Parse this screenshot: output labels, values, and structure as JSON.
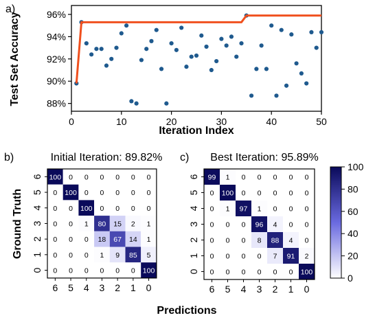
{
  "chart_data": [
    {
      "type": "scatter",
      "panel_label": "a)",
      "xlabel": "Iteration Index",
      "ylabel": "Test Set Accuracy",
      "xlim": [
        0,
        50
      ],
      "ylim": [
        87.3,
        96.8
      ],
      "x_ticks": [
        0,
        10,
        20,
        30,
        40,
        50
      ],
      "x_tick_labels": [
        "0",
        "10",
        "20",
        "30",
        "40",
        "50"
      ],
      "y_ticks": [
        88,
        90,
        92,
        94,
        96
      ],
      "y_tick_labels": [
        "88%",
        "90%",
        "92%",
        "94%",
        "96%"
      ],
      "grid": false,
      "colors": {
        "points": "#1f5a8e",
        "best_line": "#f0501e"
      },
      "points": {
        "x": [
          1,
          2,
          3,
          4,
          5,
          6,
          7,
          8,
          9,
          10,
          11,
          12,
          13,
          14,
          15,
          16,
          17,
          18,
          19,
          20,
          21,
          22,
          23,
          24,
          25,
          26,
          27,
          28,
          29,
          30,
          31,
          32,
          33,
          34,
          35,
          36,
          37,
          38,
          39,
          40,
          41,
          42,
          43,
          44,
          45,
          46,
          47,
          48,
          49,
          50
        ],
        "y": [
          89.8,
          95.3,
          93.4,
          92.4,
          92.9,
          92.9,
          91.4,
          92.0,
          93.0,
          94.3,
          95.0,
          88.2,
          88.0,
          91.9,
          92.9,
          93.6,
          94.6,
          91.1,
          88.0,
          93.4,
          92.8,
          94.8,
          91.3,
          92.2,
          92.3,
          94.1,
          93.1,
          91.0,
          91.8,
          93.8,
          93.2,
          94.0,
          92.2,
          93.4,
          95.9,
          88.7,
          91.1,
          93.2,
          91.1,
          95.0,
          88.7,
          94.6,
          89.6,
          94.2,
          91.6,
          90.7,
          89.8,
          94.4,
          93.0,
          94.4
        ]
      },
      "best_so_far": {
        "x": [
          1,
          2,
          34,
          35,
          50
        ],
        "y": [
          89.8,
          95.3,
          95.3,
          95.9,
          95.9
        ]
      }
    },
    {
      "type": "heatmap",
      "panel_label": "b)",
      "title": "Initial Iteration: 89.82%",
      "xlabel": "Predictions",
      "ylabel": "Ground Truth",
      "x_tick_labels": [
        "6",
        "5",
        "4",
        "3",
        "2",
        "1",
        "0"
      ],
      "y_tick_labels": [
        "6",
        "5",
        "4",
        "3",
        "2",
        "1",
        "0"
      ],
      "values": [
        [
          100,
          0,
          0,
          0,
          0,
          0,
          0
        ],
        [
          0,
          100,
          0,
          0,
          0,
          0,
          0
        ],
        [
          0,
          0,
          100,
          0,
          0,
          0,
          0
        ],
        [
          0,
          0,
          1,
          80,
          15,
          2,
          1
        ],
        [
          0,
          0,
          0,
          18,
          67,
          14,
          1
        ],
        [
          0,
          0,
          0,
          1,
          9,
          85,
          5
        ],
        [
          0,
          0,
          0,
          0,
          0,
          0,
          100
        ]
      ]
    },
    {
      "type": "heatmap",
      "panel_label": "c)",
      "title": "Best Iteration: 95.89%",
      "x_tick_labels": [
        "6",
        "5",
        "4",
        "3",
        "2",
        "1",
        "0"
      ],
      "y_tick_labels": [
        "6",
        "5",
        "4",
        "3",
        "2",
        "1",
        "0"
      ],
      "values": [
        [
          99,
          1,
          0,
          0,
          0,
          0,
          0
        ],
        [
          0,
          100,
          0,
          0,
          0,
          0,
          0
        ],
        [
          0,
          1,
          97,
          1,
          0,
          0,
          0
        ],
        [
          0,
          0,
          0,
          96,
          4,
          0,
          0
        ],
        [
          0,
          0,
          0,
          8,
          88,
          4,
          0
        ],
        [
          0,
          0,
          0,
          0,
          7,
          91,
          2
        ],
        [
          0,
          0,
          0,
          0,
          0,
          0,
          100
        ]
      ]
    }
  ],
  "colorbar": {
    "range": [
      0,
      100
    ],
    "ticks": [
      0,
      20,
      40,
      60,
      80,
      100
    ],
    "colors": {
      "low": "#ffffff",
      "high": "#0a0a5a"
    }
  },
  "shared_xlabel": "Predictions"
}
